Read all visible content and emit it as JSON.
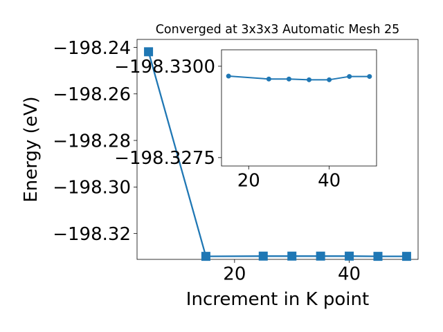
{
  "chart_data": [
    {
      "type": "line",
      "title": "Converged at 3x3x3 Automatic Mesh 25",
      "xlabel": "Increment in K point",
      "ylabel": "Energy (eV)",
      "xlim": [
        3,
        52
      ],
      "ylim": [
        -198.3311,
        -198.2366
      ],
      "x_ticks": [
        20,
        40
      ],
      "x_tick_labels": [
        "20",
        "40"
      ],
      "y_ticks": [
        -198.32,
        -198.3,
        -198.28,
        -198.26,
        -198.24
      ],
      "y_tick_labels": [
        "−198.32",
        "−198.30",
        "−198.28",
        "−198.26",
        "−198.24"
      ],
      "marker": "square",
      "color": "#1f77b4",
      "series": [
        {
          "x": [
            5,
            15,
            25,
            30,
            35,
            40,
            45,
            50
          ],
          "y": [
            -198.2419,
            -198.3298,
            -198.3297,
            -198.3297,
            -198.3297,
            -198.3297,
            -198.3298,
            -198.3298
          ]
        }
      ]
    },
    {
      "type": "line",
      "role": "inset",
      "xlim": [
        13.25,
        51.75
      ],
      "ylim": [
        -198.32727,
        -198.33045
      ],
      "x_ticks": [
        20,
        40
      ],
      "x_tick_labels": [
        "20",
        "40"
      ],
      "y_ticks": [
        -198.3275,
        -198.33
      ],
      "y_tick_labels": [
        "−198.3275",
        "−198.3300"
      ],
      "marker": "circle",
      "color": "#1f77b4",
      "series": [
        {
          "x": [
            15,
            25,
            30,
            35,
            40,
            45,
            50
          ],
          "y": [
            -198.32973,
            -198.32965,
            -198.32965,
            -198.32963,
            -198.32963,
            -198.32972,
            -198.32972
          ]
        }
      ]
    }
  ]
}
